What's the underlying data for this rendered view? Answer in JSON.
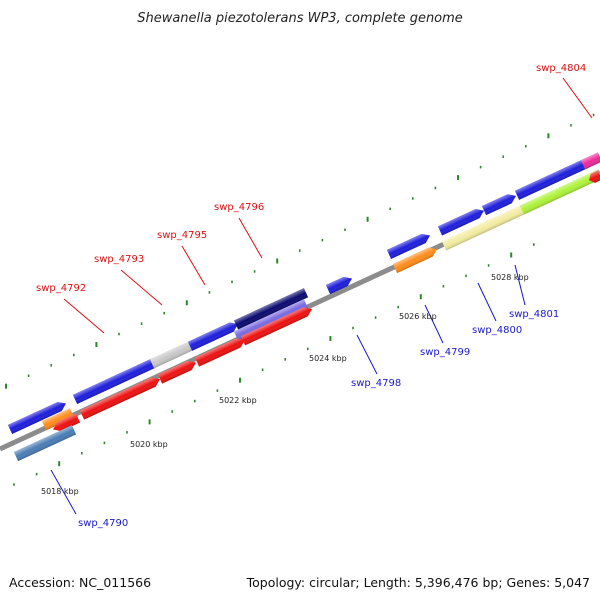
{
  "title": "Shewanella piezotolerans WP3, complete genome",
  "footer": {
    "accession": "Accession: NC_011566",
    "summary": "Topology: circular; Length: 5,396,476 bp; Genes: 5,047"
  },
  "scale_labels": [
    "5018 kbp",
    "5020 kbp",
    "5022 kbp",
    "5024 kbp",
    "5026 kbp",
    "5028 kbp"
  ],
  "gene_labels": [
    {
      "text": "swp_4804",
      "color": "#dd1111"
    },
    {
      "text": "swp_4796",
      "color": "#dd1111"
    },
    {
      "text": "swp_4795",
      "color": "#dd1111"
    },
    {
      "text": "swp_4793",
      "color": "#dd1111"
    },
    {
      "text": "swp_4792",
      "color": "#dd1111"
    },
    {
      "text": "swp_4798",
      "color": "#1a1acc"
    },
    {
      "text": "swp_4799",
      "color": "#1a1acc"
    },
    {
      "text": "swp_4800",
      "color": "#1a1acc"
    },
    {
      "text": "swp_4801",
      "color": "#1a1acc"
    },
    {
      "text": "swp_4790",
      "color": "#1a1acc"
    }
  ],
  "colors": {
    "backbone": "#8c8c8c",
    "tick": "#2a8a2a",
    "blue": "#1e1edc",
    "red": "#ee1111",
    "orange": "#ff8c1a",
    "grey": "#c8c8c8",
    "navy": "#0a0a70",
    "lavender": "#7a6ae0",
    "pale_yellow": "#f3eca0",
    "lime": "#aef23a",
    "magenta": "#ee2a9a",
    "steel_blue": "#4a7db5"
  }
}
